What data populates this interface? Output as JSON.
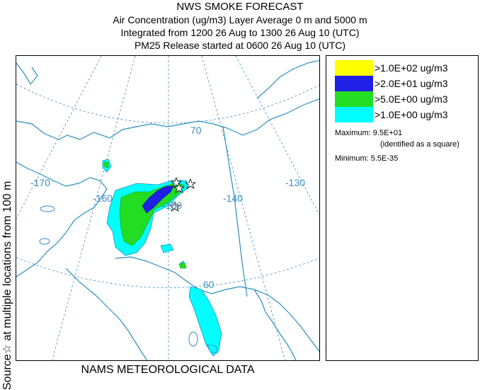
{
  "title": {
    "line1": "NWS SMOKE FORECAST",
    "line2": "Air Concentration (ug/m3) Layer Average    0 m and  5000 m",
    "line3": "Integrated from 1200 26 Aug to 1300 26 Aug 10 (UTC)",
    "line4": "PM25 Release started at 0600 26 Aug 10 (UTC)"
  },
  "side_label": "Source☆  at multiple locations   from   100 m",
  "footer": "NAMS METEOROLOGICAL DATA",
  "map": {
    "lon_labels": [
      "-170",
      "-160",
      "-150",
      "-140",
      "-130"
    ],
    "lat_labels": [
      "70",
      "60"
    ],
    "colors": {
      "coast": "#2a8fc0",
      "grid": "#3a8fc0",
      "border": "#2a8fc0"
    }
  },
  "legend": {
    "items": [
      {
        "label": ">1.0E+02 ug/m3",
        "color": "#ffff00"
      },
      {
        "label": ">2.0E+01 ug/m3",
        "color": "#1f1fe6"
      },
      {
        "label": ">5.0E+00 ug/m3",
        "color": "#22dd22"
      },
      {
        "label": ">1.0E+00 ug/m3",
        "color": "#00ffff"
      }
    ],
    "maximum_label": "Maximum: 9.5E+01",
    "maximum_note": "(identified as a square)",
    "minimum_label": "Minimum: 5.5E-35"
  }
}
